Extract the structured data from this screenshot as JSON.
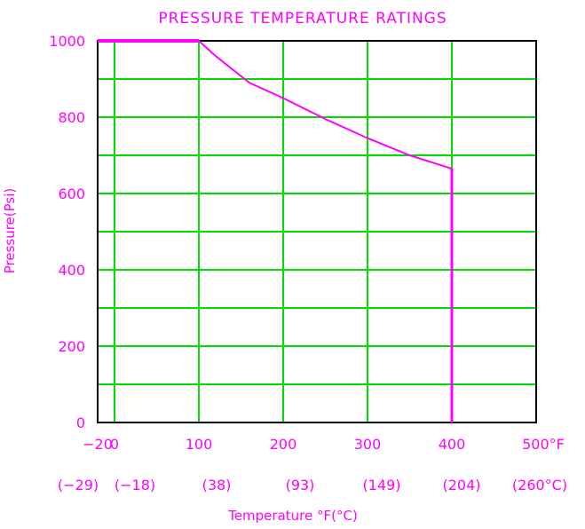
{
  "chart_data": {
    "type": "line",
    "title": "PRESSURE TEMPERATURE RATINGS",
    "xlabel": "Temperature °F(°C)",
    "ylabel": "Pressure(Psi)",
    "xlim": [
      -20,
      500
    ],
    "ylim": [
      0,
      1000
    ],
    "grid": true,
    "x_ticks": [
      -20,
      0,
      100,
      200,
      300,
      400,
      500
    ],
    "x_tick_labels": [
      "−20",
      "0",
      "100",
      "200",
      "300",
      "400",
      "500°F"
    ],
    "x_tick_labels_celsius": [
      "(−29)",
      "(−18)",
      "(38)",
      "(93)",
      "(149)",
      "(204)",
      "(260°C)"
    ],
    "y_ticks": [
      0,
      200,
      400,
      600,
      800,
      1000
    ],
    "y_tick_labels": [
      "0",
      "200",
      "400",
      "600",
      "800",
      "1000"
    ],
    "series": [
      {
        "x": [
          -20,
          100,
          120,
          160,
          200,
          250,
          300,
          350,
          400,
          400
        ],
        "y": [
          1000,
          1000,
          960,
          890,
          850,
          795,
          745,
          700,
          665,
          0
        ]
      }
    ],
    "colors": {
      "line": "#ff00ff",
      "text": "#ff00ff",
      "grid": "#00dd00",
      "frame": "#000000"
    }
  }
}
